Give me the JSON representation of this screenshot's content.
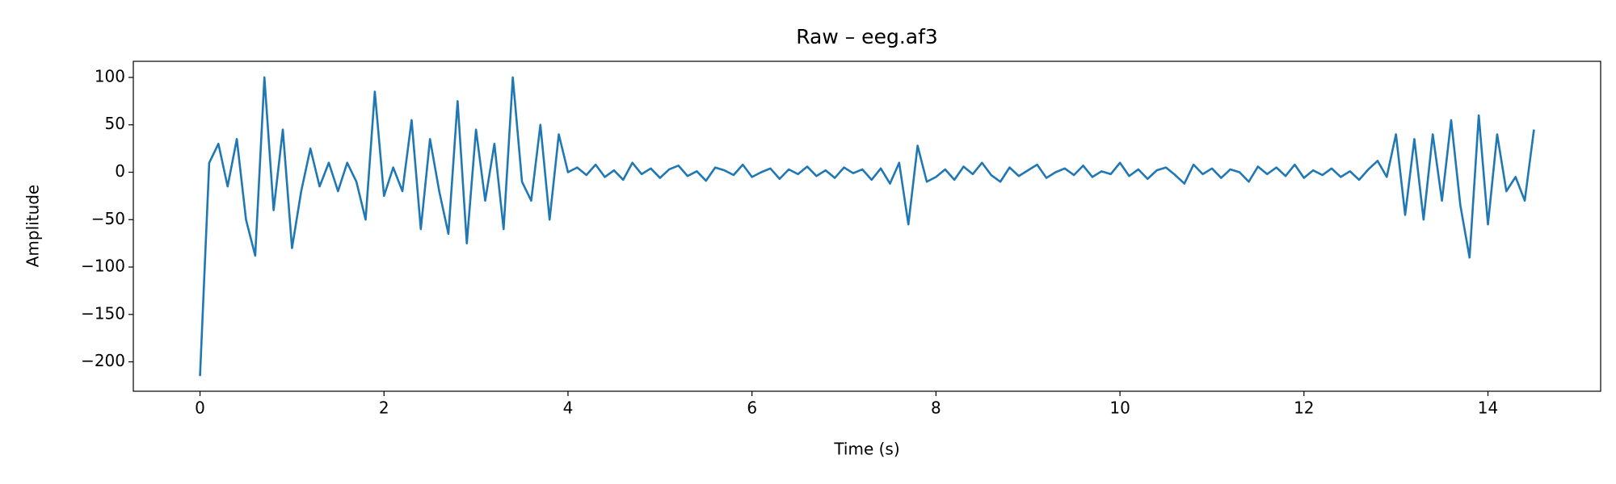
{
  "chart_data": {
    "type": "line",
    "title": "Raw – eeg.af3",
    "x_label": "Time (s)",
    "y_label": "Amplitude",
    "x": [
      0,
      0.1,
      0.2,
      0.3,
      0.4,
      0.5,
      0.6,
      0.7,
      0.8,
      0.9,
      1,
      1.1,
      1.2,
      1.3,
      1.4,
      1.5,
      1.6,
      1.7,
      1.8,
      1.9,
      2,
      2.1,
      2.2,
      2.3,
      2.4,
      2.5,
      2.6,
      2.7,
      2.8,
      2.9,
      3,
      3.1,
      3.2,
      3.3,
      3.4,
      3.5,
      3.6,
      3.7,
      3.8,
      3.9,
      4,
      4.1,
      4.2,
      4.3,
      4.4,
      4.5,
      4.6,
      4.7,
      4.8,
      4.9,
      5,
      5.1,
      5.2,
      5.3,
      5.4,
      5.5,
      5.6,
      5.7,
      5.8,
      5.9,
      6,
      6.1,
      6.2,
      6.3,
      6.4,
      6.5,
      6.6,
      6.7,
      6.8,
      6.9,
      7,
      7.1,
      7.2,
      7.3,
      7.4,
      7.5,
      7.6,
      7.7,
      7.8,
      7.9,
      8,
      8.1,
      8.2,
      8.3,
      8.4,
      8.5,
      8.6,
      8.7,
      8.8,
      8.9,
      9,
      9.1,
      9.2,
      9.3,
      9.4,
      9.5,
      9.6,
      9.7,
      9.8,
      9.9,
      10,
      10.1,
      10.2,
      10.3,
      10.4,
      10.5,
      10.6,
      10.7,
      10.8,
      10.9,
      11,
      11.1,
      11.2,
      11.3,
      11.4,
      11.5,
      11.6,
      11.7,
      11.8,
      11.9,
      12,
      12.1,
      12.2,
      12.3,
      12.4,
      12.5,
      12.6,
      12.7,
      12.8,
      12.9,
      13,
      13.1,
      13.2,
      13.3,
      13.4,
      13.5,
      13.6,
      13.7,
      13.8,
      13.9,
      14,
      14.1,
      14.2,
      14.3,
      14.4,
      14.5
    ],
    "series": [
      {
        "name": "eeg.af3",
        "color": "#1f77b4",
        "values": [
          -215,
          10,
          30,
          -15,
          35,
          -50,
          -88,
          100,
          -40,
          45,
          -80,
          -20,
          25,
          -15,
          10,
          -20,
          10,
          -10,
          -50,
          85,
          -25,
          5,
          -20,
          55,
          -60,
          35,
          -20,
          -65,
          75,
          -75,
          45,
          -30,
          30,
          -60,
          100,
          -10,
          -30,
          50,
          -50,
          40,
          0,
          5,
          -3,
          8,
          -5,
          2,
          -8,
          10,
          -2,
          4,
          -6,
          3,
          7,
          -4,
          1,
          -9,
          5,
          2,
          -3,
          8,
          -5,
          0,
          4,
          -7,
          3,
          -2,
          6,
          -4,
          2,
          -6,
          5,
          -1,
          3,
          -8,
          4,
          -12,
          10,
          -55,
          28,
          -10,
          -5,
          3,
          -8,
          6,
          -2,
          10,
          -3,
          -10,
          5,
          -4,
          2,
          8,
          -6,
          0,
          4,
          -3,
          7,
          -5,
          1,
          -2,
          10,
          -4,
          3,
          -7,
          2,
          5,
          -3,
          -12,
          8,
          -2,
          4,
          -6,
          3,
          0,
          -10,
          6,
          -2,
          5,
          -4,
          8,
          -6,
          2,
          -3,
          4,
          -5,
          1,
          -8,
          3,
          12,
          -5,
          40,
          -45,
          35,
          -50,
          40,
          -30,
          55,
          -35,
          -90,
          60,
          -55,
          40,
          -20,
          -5,
          -30,
          45
        ]
      }
    ],
    "xlim": [
      -0.725,
      15.225
    ],
    "ylim": [
      -231,
      117
    ],
    "xticks": [
      0,
      2,
      4,
      6,
      8,
      10,
      12,
      14
    ],
    "yticks": [
      {
        "value": -200,
        "label": "−200"
      },
      {
        "value": -150,
        "label": "−150"
      },
      {
        "value": -100,
        "label": "−100"
      },
      {
        "value": -50,
        "label": "−50"
      },
      0,
      50,
      100
    ]
  }
}
